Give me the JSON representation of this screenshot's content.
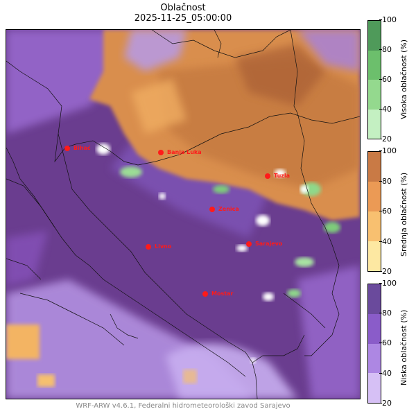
{
  "title": "Oblačnost",
  "subtitle": "2025-11-25_05:00:00",
  "footer": "WRF-ARW v4.6.1, Federalni hidrometeorološki zavod Sarajevo",
  "cities": [
    {
      "name": "Bihać"
    },
    {
      "name": "Banja Luka"
    },
    {
      "name": "Tuzla"
    },
    {
      "name": "Zenica"
    },
    {
      "name": "Livno"
    },
    {
      "name": "Sarajevo"
    },
    {
      "name": "Mostar"
    }
  ],
  "colorbars": [
    {
      "label": "Visoka oblačnost (%)",
      "ticks": [
        "100",
        "80",
        "60",
        "40",
        "20"
      ],
      "colors": [
        "#4f9a5a",
        "#6cbf6c",
        "#94d98e",
        "#c4f0c2"
      ]
    },
    {
      "label": "Srednja oblačnost (%)",
      "ticks": [
        "100",
        "80",
        "60",
        "40",
        "20"
      ],
      "colors": [
        "#c97a45",
        "#eb9a55",
        "#f8c070",
        "#fde8a2"
      ]
    },
    {
      "label": "Niska oblačnost (%)",
      "ticks": [
        "100",
        "80",
        "60",
        "40",
        "20"
      ],
      "colors": [
        "#6a4a9c",
        "#8a5cc9",
        "#ad87e3",
        "#d6c0f5"
      ]
    }
  ]
}
